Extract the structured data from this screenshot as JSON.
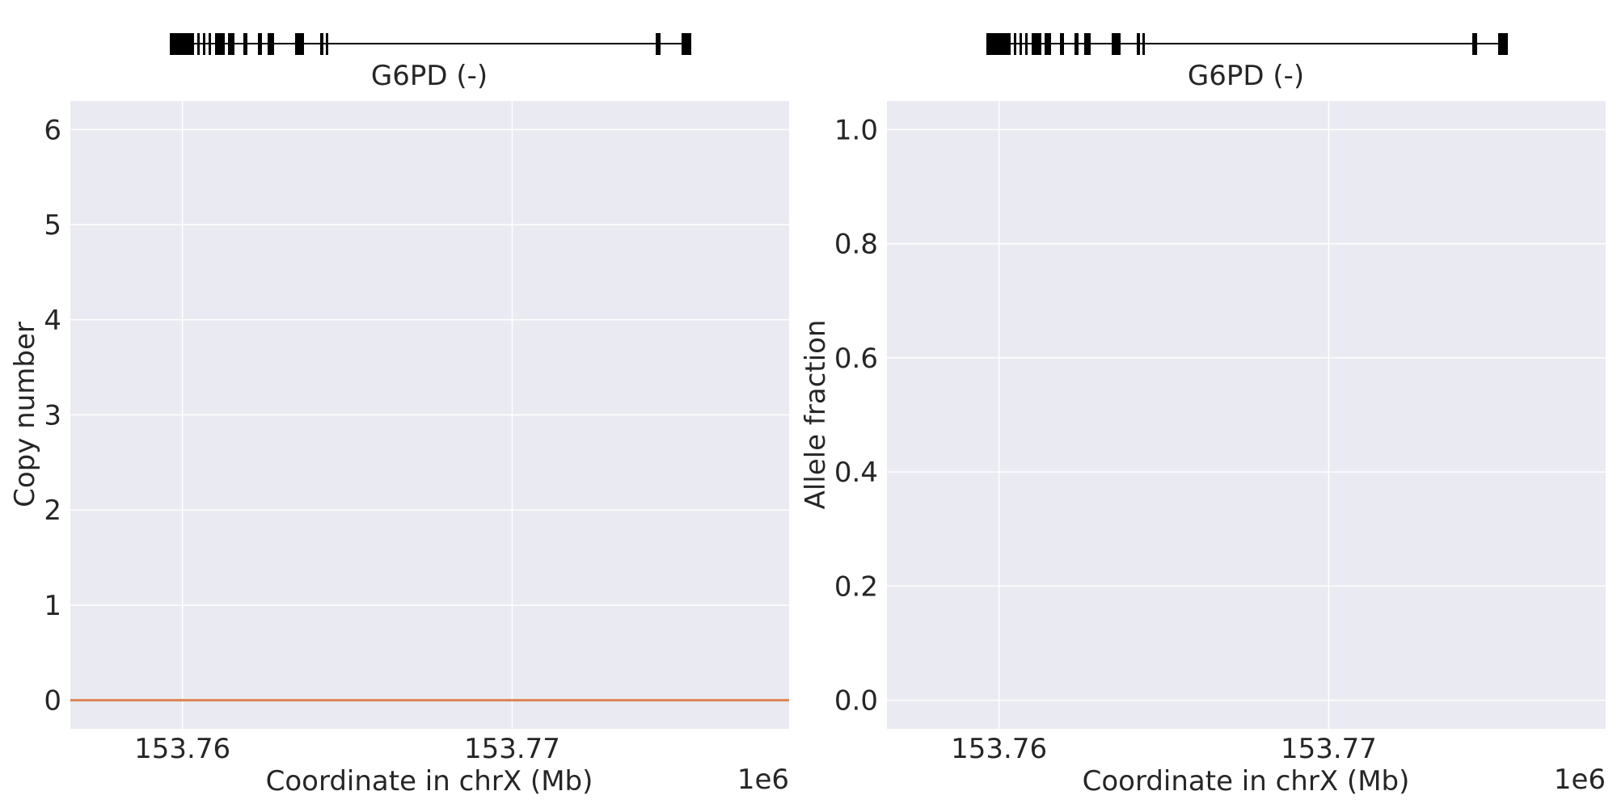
{
  "chart_data": [
    {
      "type": "line",
      "gene_track": {
        "label": "G6PD (-)"
      },
      "xlabel": "Coordinate in chrX (Mb)",
      "x_offset_label": "1e6",
      "ylabel": "Copy number",
      "xlim": [
        153.7566,
        153.7784
      ],
      "ylim": [
        -0.3,
        6.3
      ],
      "xticks": [
        {
          "value": 153.76,
          "label": "153.76"
        },
        {
          "value": 153.77,
          "label": "153.77"
        }
      ],
      "yticks": [
        {
          "value": 0,
          "label": "0"
        },
        {
          "value": 1,
          "label": "1"
        },
        {
          "value": 2,
          "label": "2"
        },
        {
          "value": 3,
          "label": "3"
        },
        {
          "value": 4,
          "label": "4"
        },
        {
          "value": 5,
          "label": "5"
        },
        {
          "value": 6,
          "label": "6"
        }
      ],
      "series": [
        {
          "color": "#dd8452",
          "x": [
            153.7566,
            153.7784
          ],
          "y": [
            0,
            0
          ]
        }
      ],
      "grid": true,
      "background": "#eaeaf2",
      "gridcolor": "#ffffff"
    },
    {
      "type": "scatter",
      "gene_track": {
        "label": "G6PD (-)"
      },
      "xlabel": "Coordinate in chrX (Mb)",
      "x_offset_label": "1e6",
      "ylabel": "Allele fraction",
      "xlim": [
        153.7566,
        153.7784
      ],
      "ylim": [
        -0.05,
        1.05
      ],
      "xticks": [
        {
          "value": 153.76,
          "label": "153.76"
        },
        {
          "value": 153.77,
          "label": "153.77"
        }
      ],
      "yticks": [
        {
          "value": 0.0,
          "label": "0.0"
        },
        {
          "value": 0.2,
          "label": "0.2"
        },
        {
          "value": 0.4,
          "label": "0.4"
        },
        {
          "value": 0.6,
          "label": "0.6"
        },
        {
          "value": 0.8,
          "label": "0.8"
        },
        {
          "value": 1.0,
          "label": "1.0"
        }
      ],
      "series": [],
      "grid": true,
      "background": "#eaeaf2",
      "gridcolor": "#ffffff"
    }
  ]
}
